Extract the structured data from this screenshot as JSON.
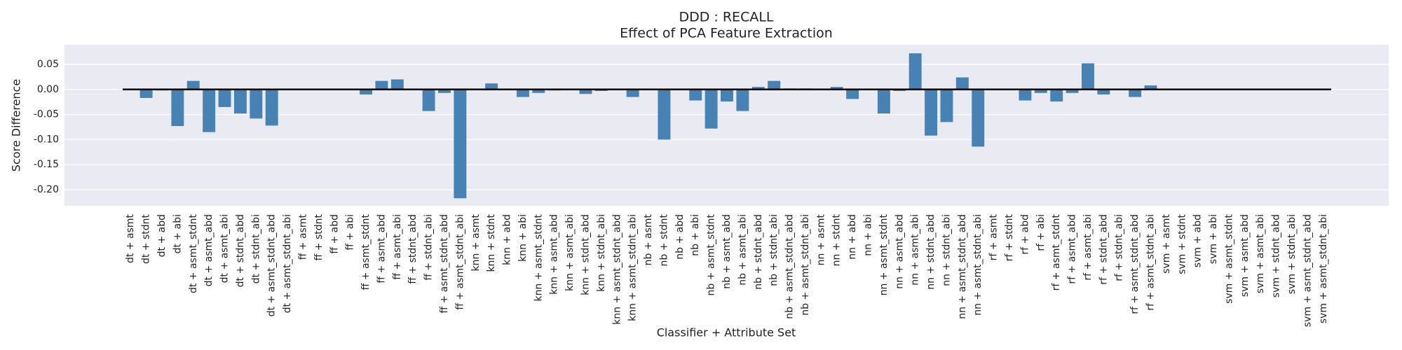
{
  "chart_data": {
    "type": "bar",
    "title": "DDD : RECALL",
    "subtitle": "Effect of PCA Feature Extraction",
    "x_label": "Classifier + Attribute Set",
    "y_label": "Score Difference",
    "color": "#4682b4",
    "grid": true,
    "ylim": [
      -0.232,
      0.089
    ],
    "yticks": [
      0.05,
      {
        "value": 0,
        "label": "0.00"
      },
      -0.05,
      {
        "value": -0.1,
        "label": "-0.10"
      },
      -0.15,
      {
        "value": -0.2,
        "label": "-0.20"
      }
    ],
    "categories": [
      "dt + asmt",
      "dt + stdnt",
      "dt + abd",
      "dt + abi",
      "dt + asmt_stdnt",
      "dt + asmt_abd",
      "dt + asmt_abi",
      "dt + stdnt_abd",
      "dt + stdnt_abi",
      "dt + asmt_stdnt_abd",
      "dt + asmt_stdnt_abi",
      "ff + asmt",
      "ff + stdnt",
      "ff + abd",
      "ff + abi",
      "ff + asmt_stdnt",
      "ff + asmt_abd",
      "ff + asmt_abi",
      "ff + stdnt_abd",
      "ff + stdnt_abi",
      "ff + asmt_stdnt_abd",
      "ff + asmt_stdnt_abi",
      "knn + asmt",
      "knn + stdnt",
      "knn + abd",
      "knn + abi",
      "knn + asmt_stdnt",
      "knn + asmt_abd",
      "knn + asmt_abi",
      "knn + stdnt_abd",
      "knn + stdnt_abi",
      "knn + asmt_stdnt_abd",
      "knn + asmt_stdnt_abi",
      "nb + asmt",
      "nb + stdnt",
      "nb + abd",
      "nb + abi",
      "nb + asmt_stdnt",
      "nb + asmt_abd",
      "nb + asmt_abi",
      "nb + stdnt_abd",
      "nb + stdnt_abi",
      "nb + asmt_stdnt_abd",
      "nb + asmt_stdnt_abi",
      "nn + asmt",
      "nn + stdnt",
      "nn + abd",
      "nn + abi",
      "nn + asmt_stdnt",
      "nn + asmt_abd",
      "nn + asmt_abi",
      "nn + stdnt_abd",
      "nn + stdnt_abi",
      "nn + asmt_stdnt_abd",
      "nn + asmt_stdnt_abi",
      "rf + asmt",
      "rf + stdnt",
      "rf + abd",
      "rf + abi",
      "rf + asmt_stdnt",
      "rf + asmt_abd",
      "rf + asmt_abi",
      "rf + stdnt_abd",
      "rf + stdnt_abi",
      "rf + asmt_stdnt_abd",
      "rf + asmt_stdnt_abi",
      "svm + asmt",
      "svm + stdnt",
      "svm + abd",
      "svm + abi",
      "svm + asmt_stdnt",
      "svm + asmt_abd",
      "svm + asmt_abi",
      "svm + stdnt_abd",
      "svm + stdnt_abi",
      "svm + asmt_stdnt_abd",
      "svm + asmt_stdnt_abi"
    ],
    "values": [
      0,
      -0.017,
      -0.002,
      -0.073,
      0.017,
      -0.085,
      -0.035,
      -0.048,
      -0.058,
      -0.072,
      0,
      0,
      0,
      0,
      0,
      -0.01,
      0.017,
      0.02,
      0,
      -0.043,
      -0.007,
      -0.217,
      0,
      0.012,
      0,
      -0.015,
      -0.007,
      -0.002,
      0,
      -0.009,
      -0.003,
      0,
      -0.015,
      0,
      -0.1,
      0,
      -0.022,
      -0.078,
      -0.024,
      -0.043,
      0.005,
      0.017,
      0.002,
      0.002,
      0,
      0.005,
      -0.019,
      0,
      -0.048,
      -0.003,
      0.072,
      -0.092,
      -0.065,
      0.024,
      -0.114,
      0,
      0,
      -0.022,
      -0.007,
      -0.024,
      -0.007,
      0.052,
      -0.01,
      0,
      -0.015,
      0.008,
      0,
      0,
      0,
      0,
      0,
      0,
      0,
      0,
      0,
      0,
      0
    ]
  }
}
